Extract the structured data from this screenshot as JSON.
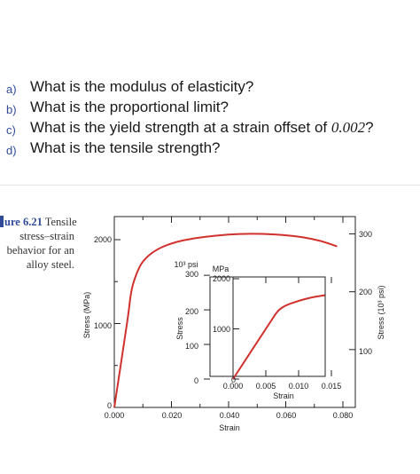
{
  "questions": [
    {
      "letter": "a)",
      "text": "What is the modulus of elasticity?"
    },
    {
      "letter": "b)",
      "text": "What is the proportional limit?"
    },
    {
      "letter": "c)",
      "text_before": "What is the yield strength at a strain offset of ",
      "value": "0.002",
      "text_after": "?"
    },
    {
      "letter": "d)",
      "text": "What is the tensile strength?"
    }
  ],
  "caption": {
    "label": "ure 6.21",
    "line1_rest": "Tensile",
    "line2": "stress–strain",
    "line3": "behavior for an",
    "line4": "alloy steel."
  },
  "chart_data": [
    {
      "type": "line",
      "role": "main",
      "xlabel": "Strain",
      "ylabel": "Stress (MPa)",
      "y2label": "Stress (10³ psi)",
      "xlim": [
        0,
        0.09
      ],
      "ylim": [
        0,
        2700
      ],
      "y2lim_ksi": [
        0,
        390
      ],
      "x_ticks": [
        "0.000",
        "0.020",
        "0.040",
        "0.060",
        "0.080"
      ],
      "y_ticks": [
        "0",
        "1000",
        "2000"
      ],
      "y2_ticks": [
        "100",
        "200",
        "300"
      ],
      "series": [
        {
          "x": [
            0,
            0.002,
            0.003,
            0.004,
            0.005,
            0.006,
            0.008,
            0.01,
            0.014,
            0.02,
            0.028,
            0.036,
            0.044,
            0.052,
            0.06,
            0.066,
            0.072,
            0.078
          ],
          "y": [
            0,
            450,
            680,
            900,
            1130,
            1420,
            1620,
            1750,
            1870,
            1960,
            2020,
            2050,
            2070,
            2070,
            2055,
            2030,
            1990,
            1920
          ]
        }
      ]
    },
    {
      "type": "line",
      "role": "inset",
      "xlabel": "Strain",
      "ylabel": "Stress",
      "y_unit_left": "10³ psi",
      "y_unit_right": "MPa",
      "xlim": [
        0,
        0.016
      ],
      "ylim": [
        0,
        2200
      ],
      "x_ticks": [
        "0.000",
        "0.005",
        "0.010",
        "0.015"
      ],
      "y_ticks_mpa": [
        "0",
        "1000",
        "2000"
      ],
      "y_ticks_ksi": [
        "0",
        "100",
        "200",
        "300"
      ],
      "series": [
        {
          "x": [
            0,
            0.002,
            0.004,
            0.006,
            0.0065,
            0.007,
            0.008,
            0.01,
            0.012,
            0.014
          ],
          "y": [
            0,
            400,
            800,
            1200,
            1300,
            1380,
            1470,
            1560,
            1630,
            1670
          ]
        }
      ]
    }
  ]
}
